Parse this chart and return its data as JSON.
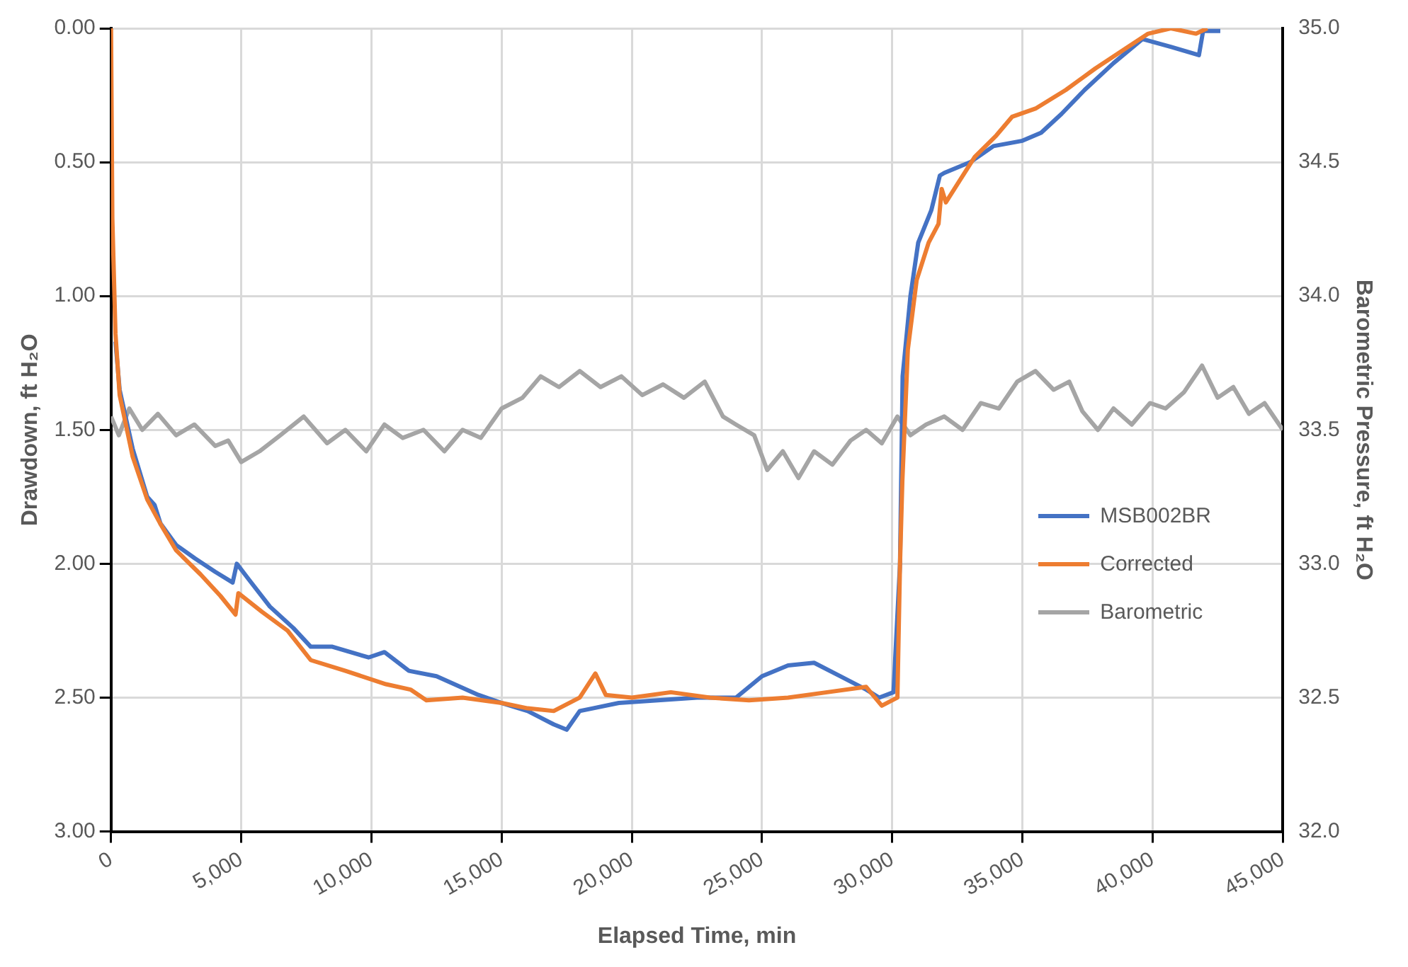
{
  "chart_data": {
    "type": "line",
    "xlabel": "Elapsed Time, min",
    "ylabel": "Drawdown, ft H₂O",
    "y2label": "Barometric Pressure, ft H₂O",
    "xlim": [
      0,
      45000
    ],
    "xticks": [
      0,
      {
        "value": 5000,
        "label": "5,000"
      },
      {
        "value": 10000,
        "label": "10,000"
      },
      {
        "value": 15000,
        "label": "15,000"
      },
      {
        "value": 20000,
        "label": "20,000"
      },
      {
        "value": 25000,
        "label": "25,000"
      },
      {
        "value": 30000,
        "label": "30,000"
      },
      {
        "value": 35000,
        "label": "35,000"
      },
      {
        "value": 40000,
        "label": "40,000"
      },
      {
        "value": 45000,
        "label": "45,000"
      }
    ],
    "ylim": [
      3,
      0
    ],
    "yticks": [
      {
        "value": 0,
        "label": "0.00"
      },
      {
        "value": 0.5,
        "label": "0.50"
      },
      {
        "value": 1,
        "label": "1.00"
      },
      {
        "value": 1.5,
        "label": "1.50"
      },
      {
        "value": 2,
        "label": "2.00"
      },
      {
        "value": 2.5,
        "label": "2.50"
      },
      {
        "value": 3,
        "label": "3.00"
      }
    ],
    "y2lim": [
      32,
      35
    ],
    "y2ticks": [
      {
        "value": 32,
        "label": "32.0"
      },
      {
        "value": 32.5,
        "label": "32.5"
      },
      {
        "value": 33,
        "label": "33.0"
      },
      {
        "value": 33.5,
        "label": "33.5"
      },
      {
        "value": 34,
        "label": "34.0"
      },
      {
        "value": 34.5,
        "label": "34.5"
      },
      {
        "value": 35,
        "label": "35.0"
      }
    ],
    "grid": true,
    "legend": "right",
    "marker": "none",
    "line_style": "solid",
    "series": [
      {
        "name": "MSB002BR",
        "color": "#4472c4",
        "x": [
          170,
          330,
          830,
          1390,
          1670,
          1900,
          2500,
          3220,
          4000,
          4670,
          4830,
          5300,
          6100,
          7000,
          7670,
          8500,
          9890,
          10500,
          11440,
          12500,
          14110,
          15000,
          16000,
          17000,
          17500,
          18000,
          18500,
          19500,
          21000,
          22500,
          24000,
          25000,
          26000,
          27000,
          28000,
          29000,
          29500,
          30050,
          30300,
          30400,
          30700,
          31000,
          31500,
          31830,
          32000,
          33000,
          33890,
          35000,
          35720,
          36500,
          37390,
          38500,
          39610,
          40720,
          41780,
          41940,
          42600
        ],
        "values": [
          1.17,
          1.35,
          1.57,
          1.75,
          1.78,
          1.85,
          1.93,
          1.98,
          2.03,
          2.07,
          2.0,
          2.06,
          2.16,
          2.24,
          2.31,
          2.31,
          2.35,
          2.33,
          2.4,
          2.42,
          2.49,
          2.52,
          2.55,
          2.6,
          2.62,
          2.55,
          2.54,
          2.52,
          2.51,
          2.5,
          2.5,
          2.42,
          2.38,
          2.37,
          2.42,
          2.47,
          2.5,
          2.48,
          2.0,
          1.3,
          1.0,
          0.8,
          0.68,
          0.55,
          0.54,
          0.5,
          0.44,
          0.42,
          0.39,
          0.32,
          0.23,
          0.13,
          0.04,
          0.07,
          0.1,
          0.01,
          0.01
        ]
      },
      {
        "name": "Corrected",
        "color": "#ed7d31",
        "x": [
          0,
          50,
          170,
          330,
          830,
          1390,
          1890,
          2500,
          3440,
          4200,
          4780,
          4890,
          5800,
          6780,
          7670,
          9000,
          10560,
          11500,
          12110,
          13500,
          15000,
          16000,
          17000,
          18000,
          18600,
          19000,
          20000,
          21500,
          23000,
          24500,
          26000,
          27500,
          29000,
          29600,
          30200,
          30300,
          30390,
          30600,
          30940,
          31400,
          31780,
          31900,
          32060,
          33170,
          34000,
          34610,
          35500,
          36670,
          37800,
          38890,
          39830,
          40700,
          41670,
          42100
        ],
        "values": [
          0,
          0.71,
          1.14,
          1.37,
          1.6,
          1.76,
          1.85,
          1.95,
          2.04,
          2.12,
          2.19,
          2.11,
          2.18,
          2.25,
          2.36,
          2.4,
          2.45,
          2.47,
          2.51,
          2.5,
          2.52,
          2.54,
          2.55,
          2.5,
          2.41,
          2.49,
          2.5,
          2.48,
          2.5,
          2.51,
          2.5,
          2.48,
          2.46,
          2.53,
          2.5,
          2.0,
          1.69,
          1.2,
          0.94,
          0.8,
          0.73,
          0.6,
          0.65,
          0.48,
          0.4,
          0.33,
          0.3,
          0.23,
          0.15,
          0.08,
          0.02,
          0.0,
          0.02,
          0.0
        ]
      },
      {
        "name": "Barometric",
        "color": "#a5a5a5",
        "axis": "y2",
        "x": [
          0,
          300,
          700,
          1200,
          1800,
          2500,
          3200,
          4000,
          4500,
          5000,
          5700,
          6500,
          7400,
          8300,
          9000,
          9800,
          10500,
          11200,
          12000,
          12800,
          13500,
          14200,
          15000,
          15800,
          16500,
          17200,
          18000,
          18800,
          19600,
          20400,
          21200,
          22000,
          22800,
          23500,
          24000,
          24700,
          25200,
          25800,
          26400,
          27000,
          27700,
          28400,
          29000,
          29600,
          30200,
          30700,
          31300,
          32000,
          32700,
          33400,
          34100,
          34800,
          35500,
          36200,
          36800,
          37300,
          37900,
          38500,
          39200,
          39900,
          40500,
          41200,
          41900,
          42500,
          43100,
          43700,
          44300,
          45000
        ],
        "values": [
          33.55,
          33.48,
          33.58,
          33.5,
          33.56,
          33.48,
          33.52,
          33.44,
          33.46,
          33.38,
          33.42,
          33.48,
          33.55,
          33.45,
          33.5,
          33.42,
          33.52,
          33.47,
          33.5,
          33.42,
          33.5,
          33.47,
          33.58,
          33.62,
          33.7,
          33.66,
          33.72,
          33.66,
          33.7,
          33.63,
          33.67,
          33.62,
          33.68,
          33.55,
          33.52,
          33.48,
          33.35,
          33.42,
          33.32,
          33.42,
          33.37,
          33.46,
          33.5,
          33.45,
          33.55,
          33.48,
          33.52,
          33.55,
          33.5,
          33.6,
          33.58,
          33.68,
          33.72,
          33.65,
          33.68,
          33.57,
          33.5,
          33.58,
          33.52,
          33.6,
          33.58,
          33.64,
          33.74,
          33.62,
          33.66,
          33.56,
          33.6,
          33.5
        ]
      }
    ]
  }
}
